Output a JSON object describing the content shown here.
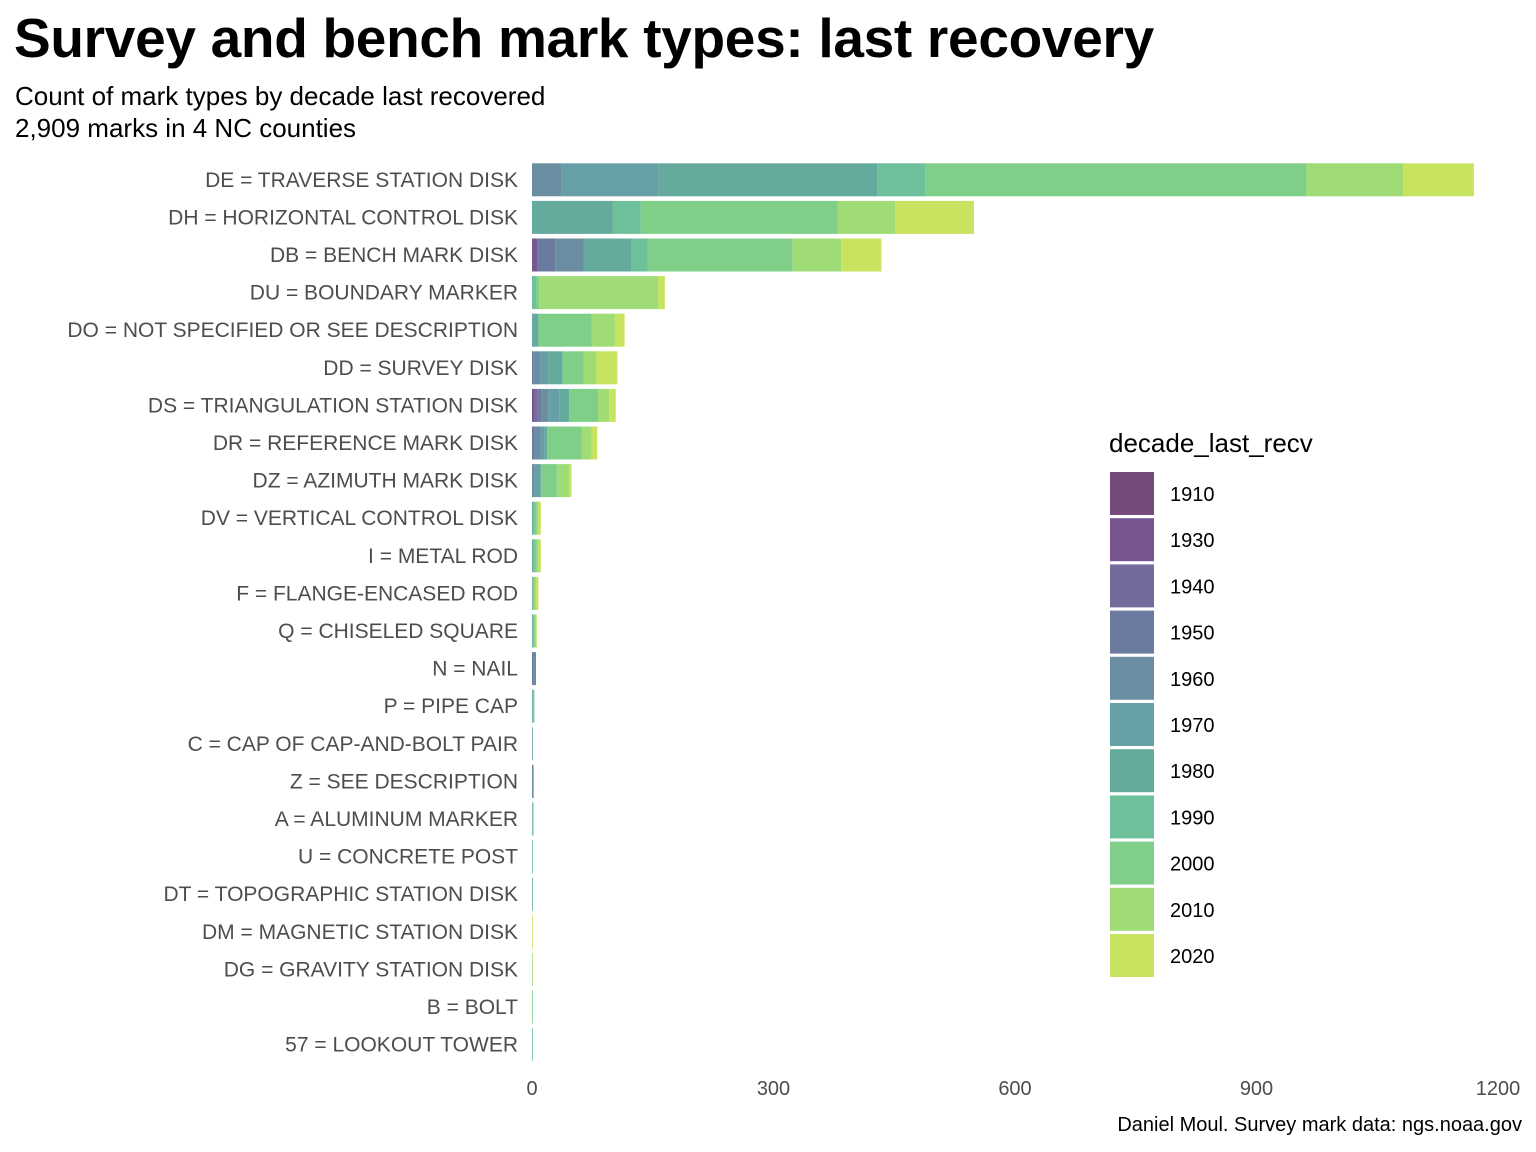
{
  "title": "Survey and bench mark types: last recovery",
  "subtitle_line1": "Count of mark types by decade last recovered",
  "subtitle_line2": "2,909 marks in 4 NC counties",
  "caption": "Daniel Moul. Survey mark data: ngs.noaa.gov",
  "chart_data": {
    "type": "bar",
    "orientation": "horizontal",
    "stacked": true,
    "xlim": [
      0,
      1200
    ],
    "ticks": [
      0,
      300,
      600,
      900,
      1200
    ],
    "grid": false,
    "legend_title": "decade_last_recv",
    "legend_placement": "right",
    "decades": [
      "1910",
      "1930",
      "1940",
      "1950",
      "1960",
      "1970",
      "1980",
      "1990",
      "2000",
      "2010",
      "2020"
    ],
    "colors": [
      "#744b7c",
      "#775591",
      "#746a9c",
      "#6b7b9f",
      "#6a8da1",
      "#66a0a6",
      "#65ab9d",
      "#6dc099",
      "#80cf89",
      "#9fdc76",
      "#c7e35f"
    ],
    "categories": [
      "DE = TRAVERSE STATION DISK",
      "DH = HORIZONTAL CONTROL DISK",
      "DB = BENCH MARK DISK",
      "DU = BOUNDARY MARKER",
      "DO = NOT SPECIFIED OR SEE DESCRIPTION",
      "DD = SURVEY DISK",
      "DS = TRIANGULATION STATION DISK",
      "DR = REFERENCE MARK DISK",
      "DZ = AZIMUTH MARK DISK",
      "DV = VERTICAL CONTROL DISK",
      "I = METAL ROD",
      "F = FLANGE-ENCASED ROD",
      "Q = CHISELED SQUARE",
      "N = NAIL",
      "P = PIPE CAP",
      "C = CAP OF CAP-AND-BOLT PAIR",
      "Z = SEE DESCRIPTION",
      "A = ALUMINUM MARKER",
      "U = CONCRETE POST",
      "DT = TOPOGRAPHIC STATION DISK",
      "DM = MAGNETIC STATION DISK",
      "DG = GRAVITY STATION DISK",
      "B = BOLT",
      "57 = LOOKOUT TOWER"
    ],
    "series": [
      {
        "values": [
          0,
          0,
          0,
          0,
          0,
          0,
          0,
          0,
          0,
          0,
          0,
          0,
          0,
          0,
          0,
          0,
          0,
          0,
          0,
          0,
          0,
          0,
          0,
          0
        ]
      },
      {
        "values": [
          0,
          0,
          7,
          0,
          0,
          0,
          3,
          0,
          0,
          0,
          0,
          0,
          0,
          0,
          0,
          0,
          0,
          0,
          0,
          0,
          0,
          0,
          0,
          0
        ]
      },
      {
        "values": [
          0,
          0,
          0,
          0,
          0,
          0,
          4,
          0,
          0,
          0,
          0,
          0,
          0,
          0,
          0,
          0,
          0,
          0,
          0,
          0,
          0,
          0,
          0,
          0
        ]
      },
      {
        "values": [
          0,
          0,
          22,
          0,
          0,
          2,
          5,
          3,
          0,
          0,
          0,
          0,
          0,
          2,
          0,
          0,
          0,
          0,
          0,
          0,
          0,
          0,
          0,
          0
        ]
      },
      {
        "values": [
          37,
          0,
          35,
          0,
          0,
          8,
          8,
          8,
          3,
          0,
          0,
          0,
          0,
          3,
          0,
          0,
          2,
          0,
          0,
          0,
          0,
          0,
          0,
          0
        ]
      },
      {
        "values": [
          120,
          0,
          0,
          0,
          2,
          10,
          14,
          5,
          8,
          0,
          0,
          0,
          1,
          0,
          0,
          1,
          0,
          0,
          0,
          0,
          0,
          0,
          0,
          0
        ]
      },
      {
        "values": [
          272,
          100,
          60,
          0,
          6,
          18,
          12,
          3,
          0,
          2,
          2,
          1,
          0,
          0,
          1,
          0,
          0,
          0,
          0,
          1,
          0,
          0,
          0,
          0
        ]
      },
      {
        "values": [
          60,
          35,
          20,
          5,
          0,
          0,
          0,
          0,
          0,
          0,
          0,
          0,
          1,
          0,
          1,
          0,
          0,
          1,
          1,
          0,
          0,
          0,
          0,
          1
        ]
      },
      {
        "values": [
          473,
          245,
          180,
          4,
          66,
          26,
          36,
          43,
          20,
          4,
          4,
          2,
          2,
          0,
          1,
          0,
          0,
          1,
          0,
          0,
          0,
          0,
          1,
          0
        ]
      },
      {
        "values": [
          120,
          71,
          60,
          148,
          29,
          16,
          14,
          12,
          15,
          2,
          2,
          2,
          1,
          0,
          0,
          0,
          0,
          0,
          0,
          0,
          0,
          1,
          0,
          0
        ]
      },
      {
        "values": [
          88,
          98,
          50,
          8,
          12,
          26,
          8,
          7,
          3,
          3,
          3,
          3,
          1,
          0,
          0,
          0,
          0,
          0,
          0,
          0,
          1,
          0,
          0,
          0
        ]
      }
    ]
  }
}
